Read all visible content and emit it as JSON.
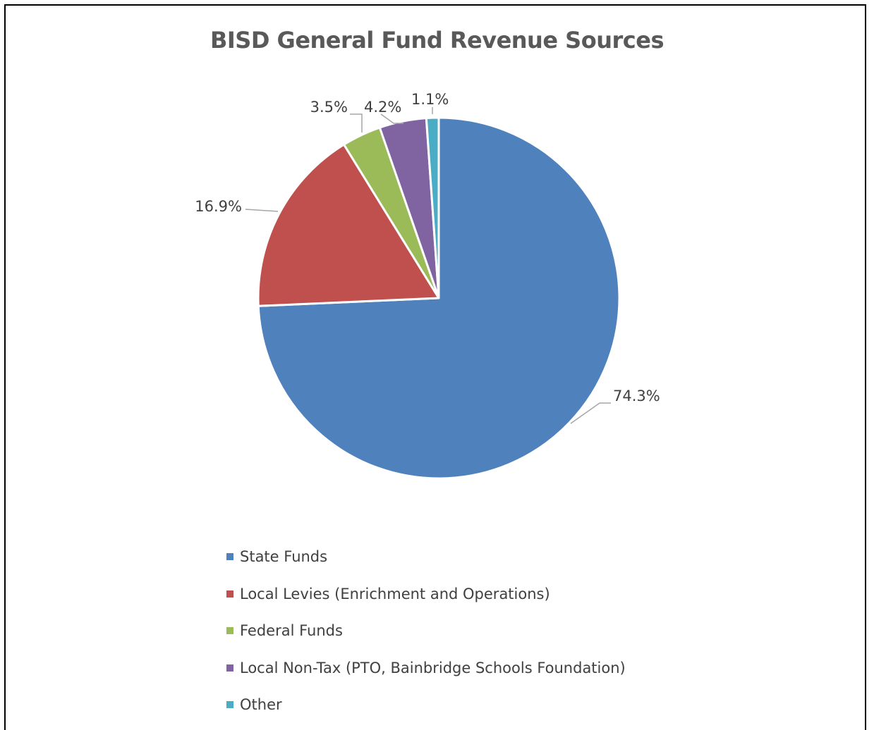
{
  "chart_data": {
    "type": "pie",
    "title": "BISD General Fund Revenue Sources",
    "categories": [
      "State Funds",
      "Local Levies (Enrichment and Operations)",
      "Federal Funds",
      "Local Non-Tax (PTO, Bainbridge Schools Foundation)",
      "Other"
    ],
    "values": [
      74.3,
      16.9,
      3.5,
      4.2,
      1.1
    ],
    "data_labels": [
      "74.3%",
      "16.9%",
      "3.5%",
      "4.2%",
      "1.1%"
    ],
    "colors": [
      "#4F81BD",
      "#C0504D",
      "#9BBB59",
      "#8064A2",
      "#4BACC6"
    ],
    "legend_position": "bottom",
    "start_angle": "12 o'clock, clockwise"
  }
}
